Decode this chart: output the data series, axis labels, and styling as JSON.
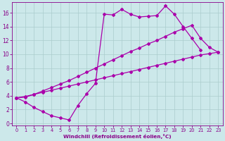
{
  "bg_color": "#cce8ea",
  "grid_color": "#aacccc",
  "line_color": "#aa00aa",
  "marker": "D",
  "markersize": 2.0,
  "linewidth": 0.9,
  "xlabel": "Windchill (Refroidissement éolien,°C)",
  "xlabel_color": "#880088",
  "tick_color": "#880088",
  "xlim": [
    -0.5,
    23.5
  ],
  "ylim": [
    -0.3,
    17.5
  ],
  "xticks": [
    0,
    1,
    2,
    3,
    4,
    5,
    6,
    7,
    8,
    9,
    10,
    11,
    12,
    13,
    14,
    15,
    16,
    17,
    18,
    19,
    20,
    21,
    22,
    23
  ],
  "yticks": [
    0,
    2,
    4,
    6,
    8,
    10,
    12,
    14,
    16
  ],
  "line1_x": [
    0,
    1,
    2,
    3,
    4,
    5,
    6,
    7,
    8,
    9,
    10,
    11,
    12,
    13,
    14,
    15,
    16,
    17,
    18,
    19,
    20,
    21
  ],
  "line1_y": [
    3.7,
    3.1,
    2.3,
    1.7,
    1.1,
    0.8,
    0.5,
    2.6,
    4.3,
    5.8,
    15.8,
    15.7,
    16.5,
    15.8,
    15.4,
    15.5,
    15.6,
    17.0,
    15.8,
    14.0,
    12.3,
    10.6
  ],
  "line2_x": [
    0,
    1,
    2,
    3,
    4,
    5,
    6,
    7,
    8,
    9,
    10,
    11,
    12,
    13,
    14,
    15,
    16,
    17,
    18,
    19,
    20,
    21,
    22,
    23
  ],
  "line2_y": [
    3.7,
    3.8,
    4.2,
    4.7,
    5.2,
    5.7,
    6.2,
    6.8,
    7.4,
    8.0,
    8.6,
    9.2,
    9.8,
    10.4,
    10.9,
    11.5,
    12.0,
    12.6,
    13.2,
    13.7,
    14.2,
    12.3,
    11.0,
    10.3
  ],
  "line3_x": [
    0,
    1,
    2,
    3,
    4,
    5,
    6,
    7,
    8,
    9,
    10,
    11,
    12,
    13,
    14,
    15,
    16,
    17,
    18,
    19,
    20,
    21,
    22,
    23
  ],
  "line3_y": [
    3.7,
    3.9,
    4.2,
    4.5,
    4.8,
    5.1,
    5.4,
    5.7,
    6.0,
    6.3,
    6.6,
    6.9,
    7.2,
    7.5,
    7.8,
    8.1,
    8.4,
    8.7,
    9.0,
    9.3,
    9.6,
    9.9,
    10.1,
    10.3
  ]
}
